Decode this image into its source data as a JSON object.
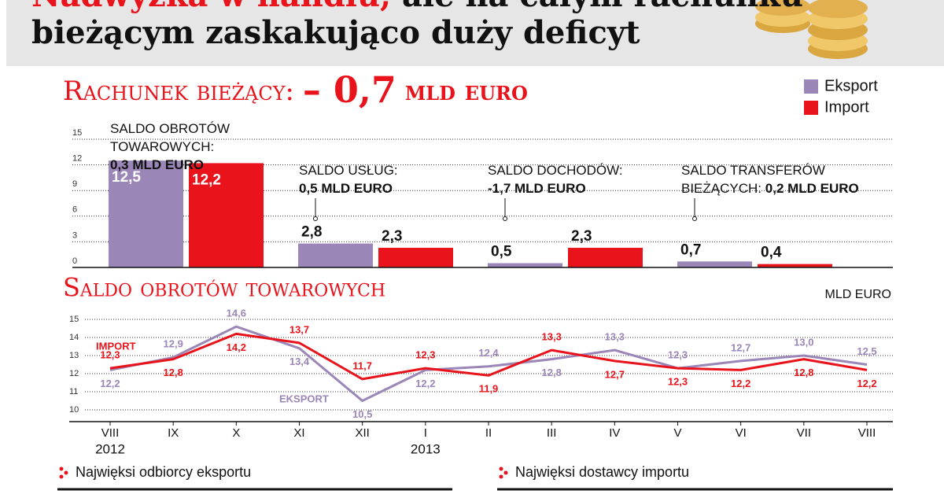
{
  "header": {
    "title_highlight": "Nadwyżka w handlu,",
    "title_rest": "ale na całym rachunku",
    "title_line2": "bieżącym zaskakująco duży deficyt"
  },
  "chart_data": [
    {
      "type": "bar",
      "title": "Rachunek bieżący:",
      "title_value": "– 0,7",
      "title_unit": "mld euro",
      "categories": [
        "Saldo obrotów towarowych:",
        "Saldo usług:",
        "Saldo dochodów:",
        "Saldo transferów bieżących:"
      ],
      "category_values": [
        "0,3 mld euro",
        "0,5 mld euro",
        "-1,7 mld euro",
        "0,2 mld euro"
      ],
      "series": [
        {
          "name": "Eksport",
          "color": "#9b86b8",
          "values": [
            12.5,
            2.8,
            0.5,
            0.7
          ],
          "value_labels": [
            "12,5",
            "2,8",
            "0,5",
            "0,7"
          ]
        },
        {
          "name": "Import",
          "color": "#e8131b",
          "values": [
            12.2,
            2.3,
            2.3,
            0.4
          ],
          "value_labels": [
            "12,2",
            "2,3",
            "2,3",
            "0,4"
          ]
        }
      ],
      "ylim": [
        0,
        15
      ],
      "yticks": [
        0,
        3,
        6,
        9,
        12,
        15
      ],
      "grid": true,
      "legend": "top-right"
    },
    {
      "type": "line",
      "title": "Saldo obrotów towarowych",
      "unit": "mld euro",
      "categories": [
        "VIII",
        "IX",
        "X",
        "XI",
        "XII",
        "I",
        "II",
        "III",
        "IV",
        "V",
        "VI",
        "VII",
        "VIII"
      ],
      "year_labels": [
        "2012",
        null,
        null,
        null,
        null,
        "2013",
        null,
        null,
        null,
        null,
        null,
        null,
        null
      ],
      "series": [
        {
          "name": "Eksport",
          "color": "#9b86b8",
          "values": [
            12.2,
            12.9,
            14.6,
            13.4,
            10.5,
            12.2,
            12.4,
            12.8,
            13.3,
            12.3,
            12.7,
            13.0,
            12.5
          ],
          "value_labels": [
            "12,2",
            "12,9",
            "14,6",
            "13,4",
            "10,5",
            "12,2",
            "12,4",
            "12,8",
            "13,3",
            "12,3",
            "12,7",
            "13,0",
            "12,5"
          ]
        },
        {
          "name": "Import",
          "color": "#e8131b",
          "values": [
            12.3,
            12.8,
            14.2,
            13.7,
            11.7,
            12.3,
            11.9,
            13.3,
            12.7,
            12.3,
            12.2,
            12.8,
            12.2
          ],
          "value_labels": [
            "12,3",
            "12,8",
            "14,2",
            "13,7",
            "11,7",
            "12,3",
            "11,9",
            "13,3",
            "12,7",
            "12,3",
            "12,2",
            "12,8",
            "12,2"
          ]
        }
      ],
      "ylim": [
        9.5,
        15
      ],
      "yticks": [
        10,
        11,
        12,
        13,
        14,
        15
      ],
      "grid": true
    }
  ],
  "sections": [
    "Najwięksi odbiorcy eksportu",
    "Najwięksi dostawcy importu"
  ]
}
